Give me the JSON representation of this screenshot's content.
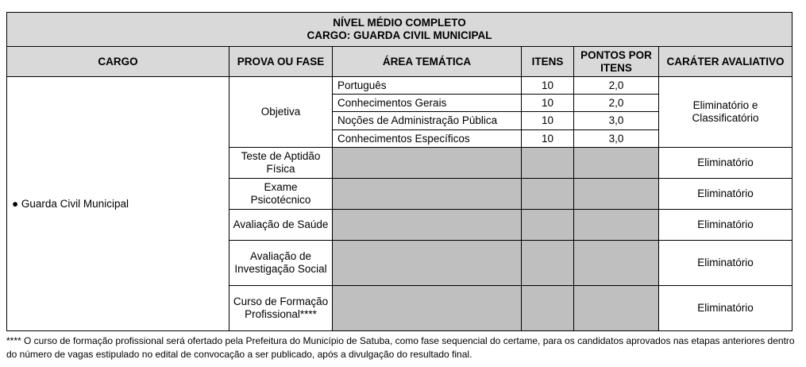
{
  "title": {
    "line1": "NÍVEL MÉDIO COMPLETO",
    "line2": "CARGO: GUARDA CIVIL MUNICIPAL"
  },
  "headers": {
    "cargo": "CARGO",
    "prova": "PROVA OU FASE",
    "area": "ÁREA TEMÁTICA",
    "itens": "ITENS",
    "pontos": "PONTOS POR ITENS",
    "carater": "CARÁTER AVALIATIVO"
  },
  "cargo": "● Guarda Civil Municipal",
  "objetiva": {
    "label": "Objetiva",
    "carater": "Eliminatório e Classificatório",
    "rows": [
      {
        "area": "Português",
        "itens": "10",
        "pontos": "2,0"
      },
      {
        "area": "Conhecimentos Gerais",
        "itens": "10",
        "pontos": "2,0"
      },
      {
        "area": "Noções de Administração Pública",
        "itens": "10",
        "pontos": "3,0"
      },
      {
        "area": "Conhecimentos Específicos",
        "itens": "10",
        "pontos": "3,0"
      }
    ]
  },
  "fases": [
    {
      "label": "Teste de Aptidão Física",
      "carater": "Eliminatório"
    },
    {
      "label": "Exame Psicotécnico",
      "carater": "Eliminatório"
    },
    {
      "label": "Avaliação de Saúde",
      "carater": "Eliminatório"
    },
    {
      "label": "Avaliação de Investigação Social",
      "carater": "Eliminatório"
    },
    {
      "label": "Curso de Formação Profissional****",
      "carater": "Eliminatório"
    }
  ],
  "footnote": "**** O curso de formação profissional será ofertado pela Prefeitura do Município de Satuba, como fase sequencial do certame, para os candidatos aprovados nas etapas anteriores dentro do número de vagas estipulado no edital de convocação a ser publicado, após a divulgação do resultado final.",
  "colors": {
    "header_bg": "#d9d9d9",
    "empty_cell_bg": "#bfbfbf"
  }
}
